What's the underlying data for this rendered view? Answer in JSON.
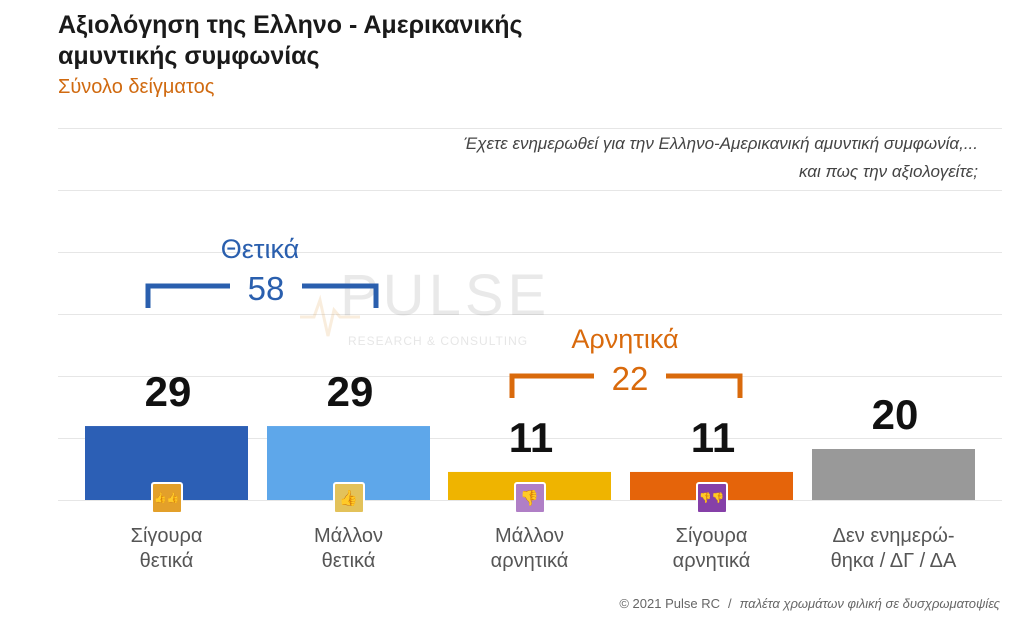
{
  "header": {
    "title": "Αξιολόγηση της Ελληνο - Αμερικανικής αμυντικής συμφωνίας",
    "subtitle": "Σύνολο δείγματος"
  },
  "question": {
    "line1": "Έχετε ενημερωθεί για την Ελληνο-Αμερικανική αμυντική συμφωνία,...",
    "line2": "και πως την αξιολογείτε;"
  },
  "watermark": {
    "word": "PULSE",
    "sub": "RESEARCH & CONSULTING"
  },
  "groups": {
    "positive": {
      "label": "Θετικά",
      "total": "58",
      "color": "#2a5fae"
    },
    "negative": {
      "label": "Αρνητικά",
      "total": "22",
      "color": "#d96a0c"
    }
  },
  "chart_data": {
    "type": "bar",
    "categories": [
      "Σίγουρα θετικά",
      "Μάλλον θετικά",
      "Μάλλον αρνητικά",
      "Σίγουρα αρνητικά",
      "Δεν ενημερώθηκα / ΔΓ / ΔΑ"
    ],
    "category_lines": [
      [
        "Σίγουρα",
        "θετικά"
      ],
      [
        "Μάλλον",
        "θετικά"
      ],
      [
        "Μάλλον",
        "αρνητικά"
      ],
      [
        "Σίγουρα",
        "αρνητικά"
      ],
      [
        "Δεν ενημερώ-",
        "θηκα / ΔΓ / ΔΑ"
      ]
    ],
    "values": [
      29,
      29,
      11,
      11,
      20
    ],
    "colors": [
      "#2c5fb5",
      "#5ea7ea",
      "#efb400",
      "#e5640a",
      "#999999"
    ],
    "icons": [
      "double-thumbs-up-icon",
      "thumbs-up-icon",
      "thumbs-down-icon",
      "double-thumbs-down-icon",
      ""
    ],
    "icon_colors": [
      "#e3a02a",
      "#e3c25a",
      "#b07fc6",
      "#8640a8",
      ""
    ],
    "ylim": [
      0,
      40
    ],
    "grid": true
  },
  "footer": {
    "copyright": "© 2021 Pulse RC",
    "separator": "/",
    "note": "παλέτα χρωμάτων φιλική σε δυσχρωματοψίες"
  }
}
